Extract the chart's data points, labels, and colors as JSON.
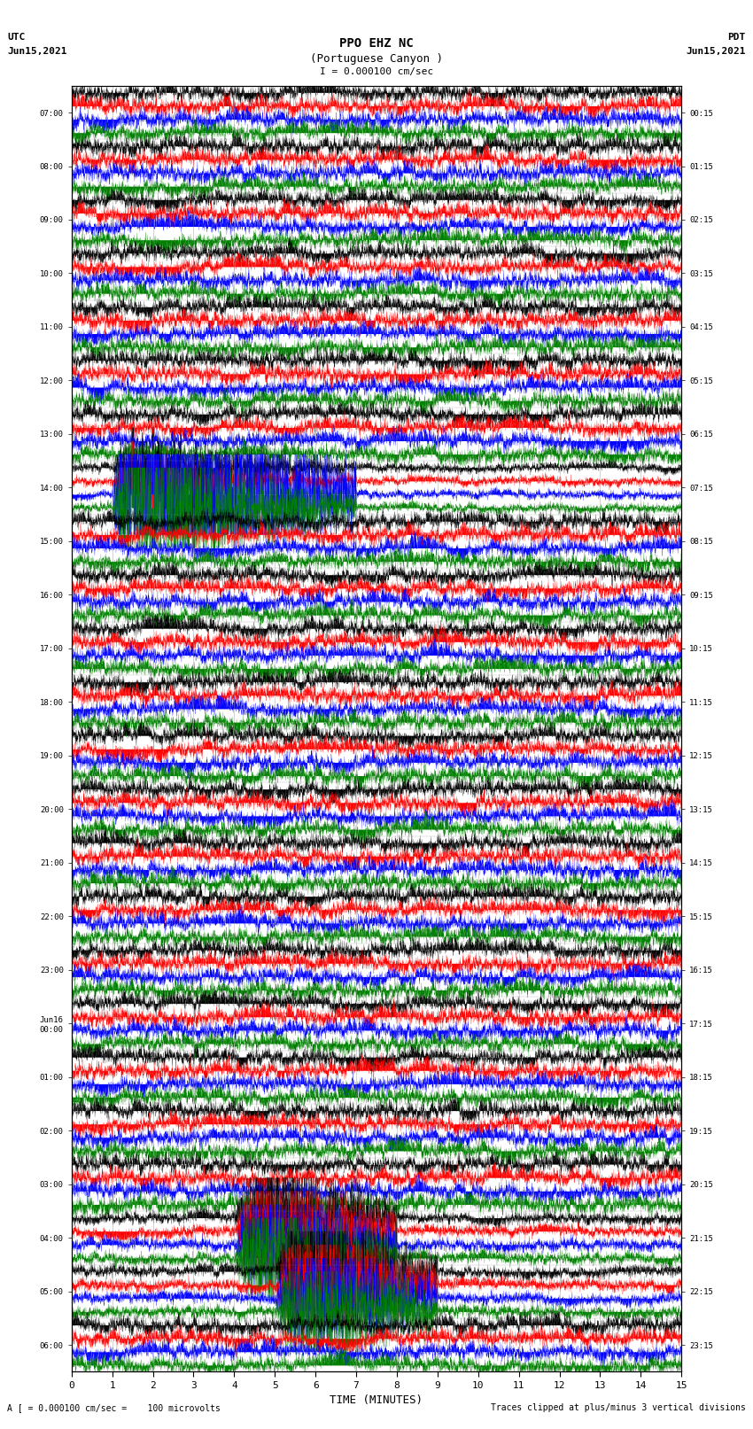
{
  "title_line1": "PPO EHZ NC",
  "title_line2": "(Portuguese Canyon )",
  "scale_text": "I = 0.000100 cm/sec",
  "utc_label": "UTC",
  "utc_date": "Jun15,2021",
  "pdt_label": "PDT",
  "pdt_date": "Jun15,2021",
  "xlabel": "TIME (MINUTES)",
  "footer_left": "A [ = 0.000100 cm/sec =    100 microvolts",
  "footer_right": "Traces clipped at plus/minus 3 vertical divisions",
  "xlim": [
    0,
    15
  ],
  "xticks": [
    0,
    1,
    2,
    3,
    4,
    5,
    6,
    7,
    8,
    9,
    10,
    11,
    12,
    13,
    14,
    15
  ],
  "utc_times": [
    "07:00",
    "08:00",
    "09:00",
    "10:00",
    "11:00",
    "12:00",
    "13:00",
    "14:00",
    "15:00",
    "16:00",
    "17:00",
    "18:00",
    "19:00",
    "20:00",
    "21:00",
    "22:00",
    "23:00",
    "Jun16\n00:00",
    "01:00",
    "02:00",
    "03:00",
    "04:00",
    "05:00",
    "06:00"
  ],
  "pdt_times": [
    "00:15",
    "01:15",
    "02:15",
    "03:15",
    "04:15",
    "05:15",
    "06:15",
    "07:15",
    "08:15",
    "09:15",
    "10:15",
    "11:15",
    "12:15",
    "13:15",
    "14:15",
    "15:15",
    "16:15",
    "17:15",
    "18:15",
    "19:15",
    "20:15",
    "21:15",
    "22:15",
    "23:15"
  ],
  "n_rows": 24,
  "traces_per_row": 4,
  "colors": [
    "black",
    "red",
    "blue",
    "green"
  ],
  "fig_width": 8.5,
  "fig_height": 16.13,
  "bg_color": "white",
  "eq_row": 7,
  "eq_row2": 8,
  "big_event_rows": [
    21,
    22
  ],
  "t_points": 6000,
  "noise_amp": 0.45,
  "clip_divs": 3
}
